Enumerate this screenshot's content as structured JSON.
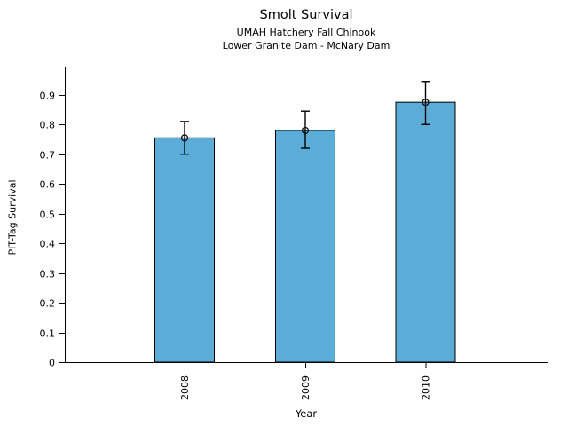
{
  "figure": {
    "title": "Smolt Survival",
    "subtitle_line1": "UMAH Hatchery Fall Chinook",
    "subtitle_line2": "Lower Granite Dam - McNary Dam"
  },
  "chart_data": {
    "type": "bar",
    "title": "Smolt Survival",
    "subtitle": [
      "UMAH Hatchery Fall Chinook",
      "Lower Granite Dam - McNary Dam"
    ],
    "xlabel": "Year",
    "ylabel": "PIT-Tag Survival",
    "categories": [
      "2008",
      "2009",
      "2010"
    ],
    "values": [
      0.755,
      0.78,
      0.875
    ],
    "error_low": [
      0.7,
      0.72,
      0.8
    ],
    "error_high": [
      0.81,
      0.845,
      0.945
    ],
    "ytick_labels": [
      "0",
      "0.1",
      "0.2",
      "0.3",
      "0.4",
      "0.5",
      "0.6",
      "0.7",
      "0.8",
      "0.9"
    ],
    "ytick_values": [
      0,
      0.1,
      0.2,
      0.3,
      0.4,
      0.5,
      0.6,
      0.7,
      0.8,
      0.9
    ],
    "ylim": [
      0,
      0.995
    ],
    "grid": false,
    "legend": null,
    "xtick_label_rotation": "vertical",
    "bar_color": "#5BACD6",
    "bar_edge_color": "#000000",
    "error_color": "#000000",
    "axis_color": "#000000"
  }
}
